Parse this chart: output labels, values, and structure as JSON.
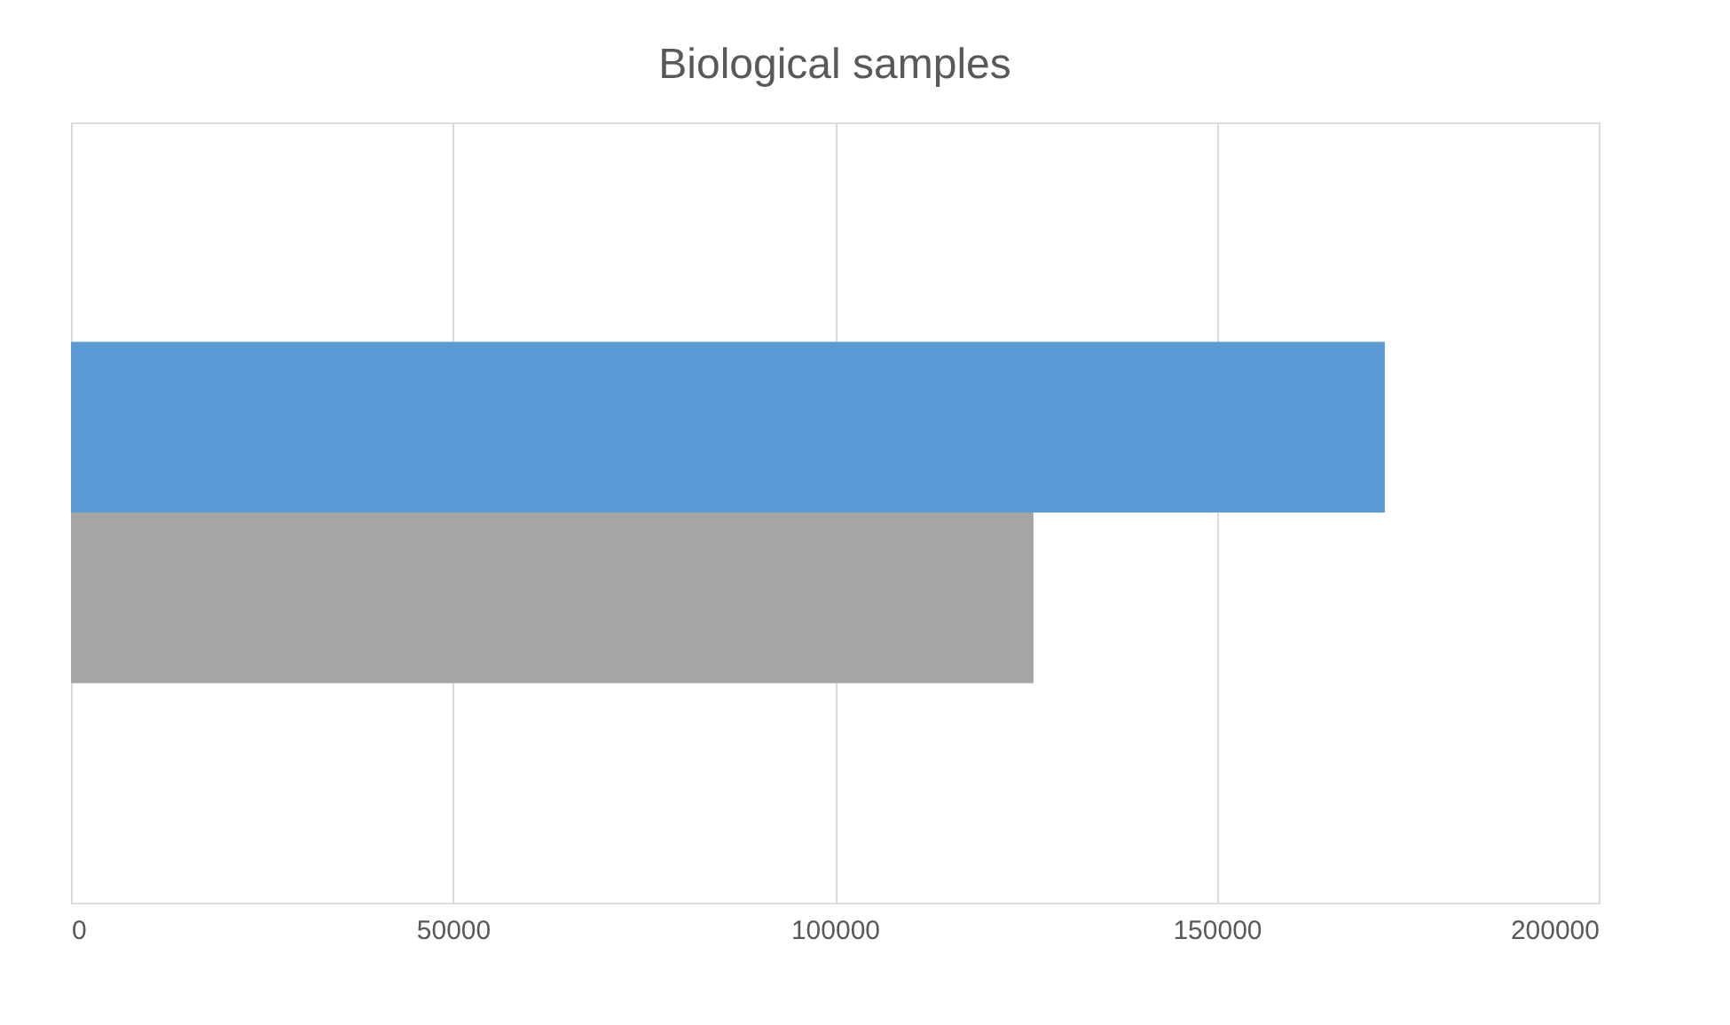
{
  "chart_data": {
    "type": "bar",
    "orientation": "horizontal",
    "title": "Biological samples",
    "categories": [
      null
    ],
    "series": [
      {
        "color": "#5b9bd5",
        "values": [
          172000
        ]
      },
      {
        "color": "#a5a5a5",
        "values": [
          126000
        ]
      }
    ],
    "xlim": [
      0,
      200000
    ],
    "xticks": [
      0,
      50000,
      100000,
      150000,
      200000
    ],
    "grid": "x",
    "tick_labels": "x"
  }
}
